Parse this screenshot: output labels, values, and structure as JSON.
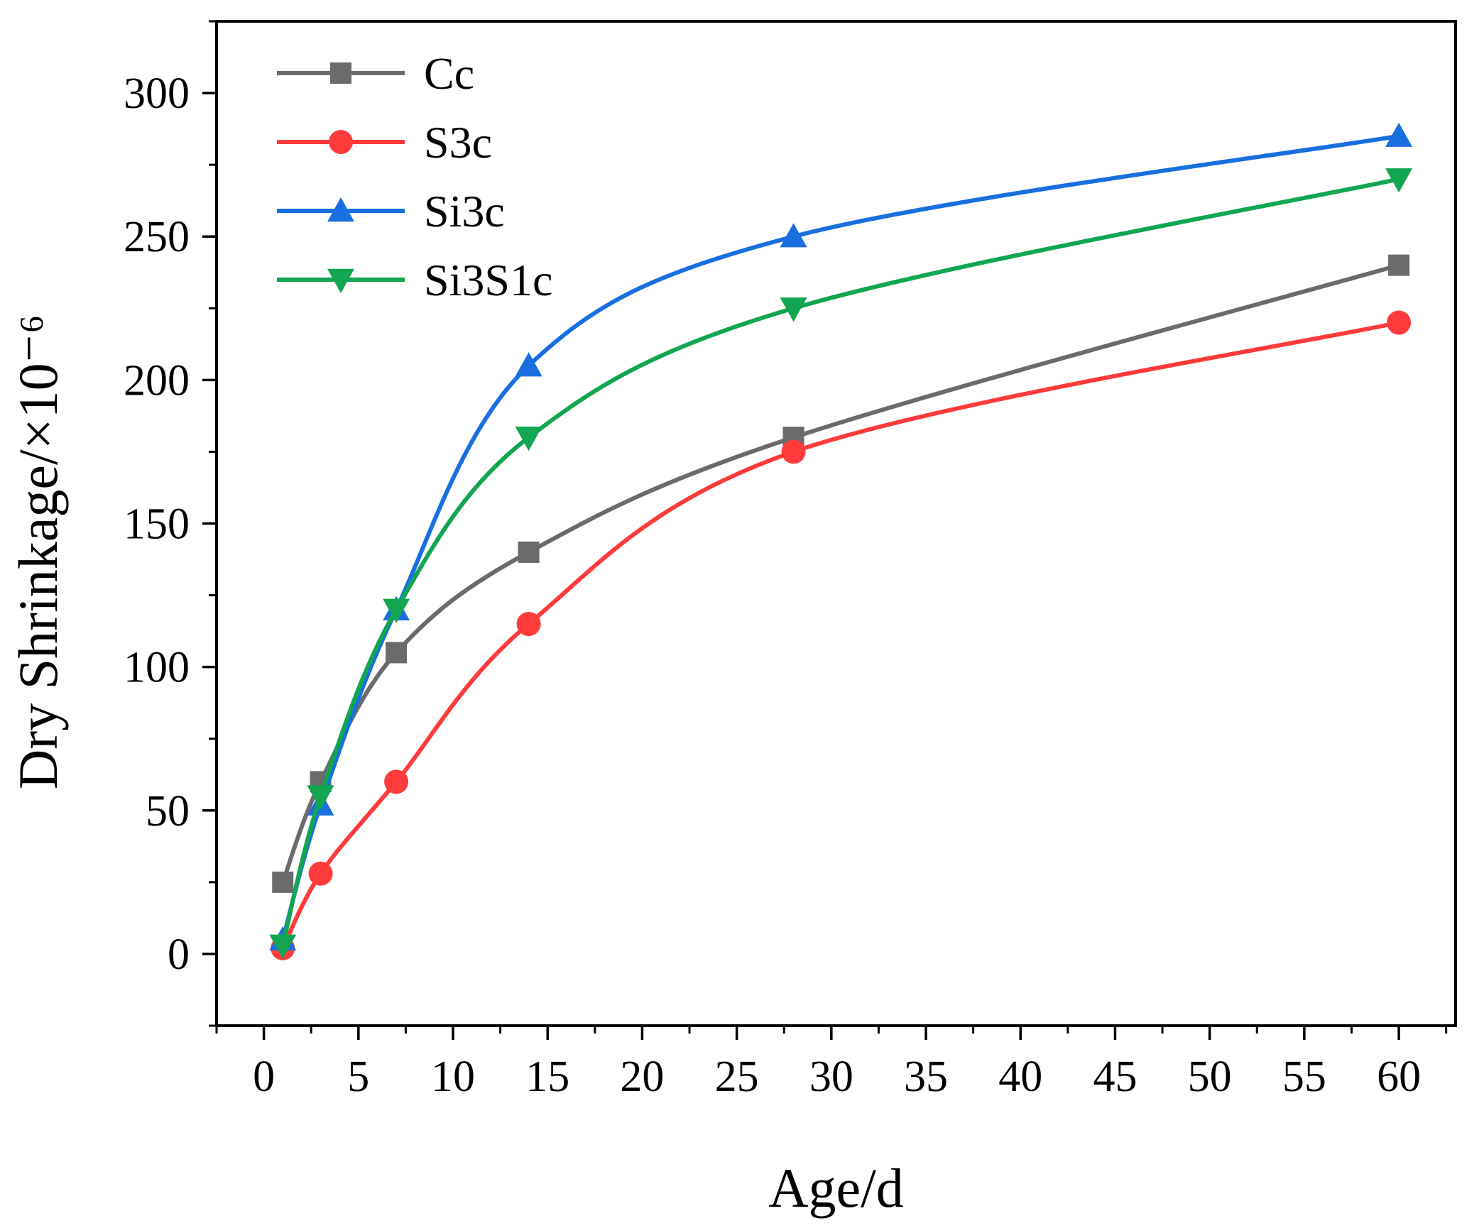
{
  "chart_data": {
    "type": "line",
    "title": "",
    "xlabel": "Age/d",
    "ylabel": "Dry Shrinkage/×10⁻⁶",
    "x": [
      1,
      3,
      7,
      14,
      28,
      60
    ],
    "xlim": [
      -2.5,
      63
    ],
    "ylim": [
      -25,
      325
    ],
    "xticks": [
      0,
      5,
      10,
      15,
      20,
      25,
      30,
      35,
      40,
      45,
      50,
      55,
      60
    ],
    "xtick_labels": [
      "0",
      "5",
      "10",
      "15",
      "20",
      "25",
      "30",
      "35",
      "40",
      "45",
      "50",
      "55",
      "60"
    ],
    "yticks": [
      0,
      50,
      100,
      150,
      200,
      250,
      300
    ],
    "ytick_labels": [
      "0",
      "50",
      "100",
      "150",
      "200",
      "250",
      "300"
    ],
    "grid": false,
    "legend_position": "top-left",
    "series": [
      {
        "name": "Cc",
        "color": "#6b6b6b",
        "marker": "square",
        "values": [
          25,
          60,
          105,
          140,
          180,
          240
        ]
      },
      {
        "name": "S3c",
        "color": "#ff3b3b",
        "marker": "circle",
        "values": [
          2,
          28,
          60,
          115,
          175,
          220
        ]
      },
      {
        "name": "Si3c",
        "color": "#1a6fe0",
        "marker": "triangle-up",
        "values": [
          5,
          52,
          120,
          205,
          250,
          285
        ]
      },
      {
        "name": "Si3S1c",
        "color": "#12a552",
        "marker": "triangle-down",
        "values": [
          3,
          55,
          120,
          180,
          225,
          270
        ]
      }
    ]
  }
}
